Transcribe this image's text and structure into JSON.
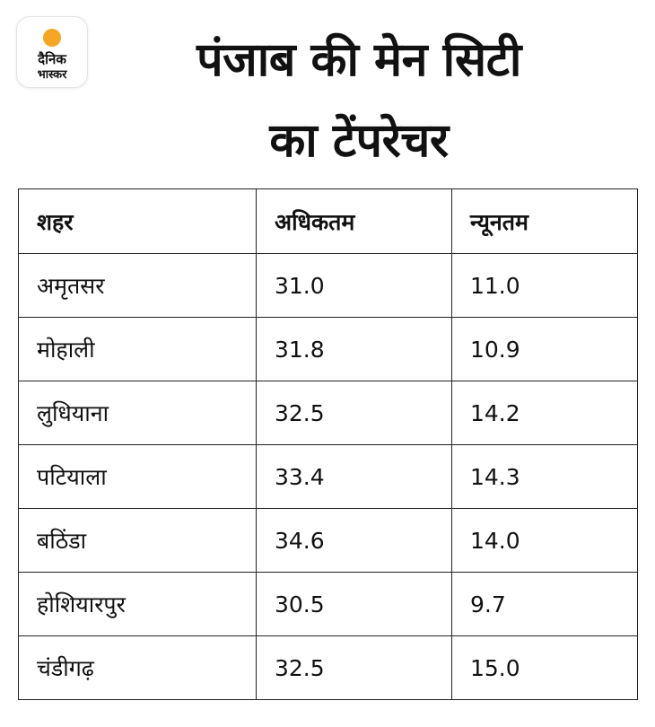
{
  "logo": {
    "line1": "दैनिक",
    "line2": "भास्कर",
    "accent_color": "#F5A623"
  },
  "title": {
    "line1": "पंजाब की मेन सिटी",
    "line2": "का टेंपरेचर"
  },
  "table": {
    "headers": [
      "शहर",
      "अधिकतम",
      "न्यूनतम"
    ],
    "rows": [
      [
        "अमृतसर",
        "31.0",
        "11.0"
      ],
      [
        "मोहाली",
        "31.8",
        "10.9"
      ],
      [
        "लुधियाना",
        "32.5",
        "14.2"
      ],
      [
        "पटियाला",
        "33.4",
        "14.3"
      ],
      [
        "बठिंडा",
        "34.6",
        "14.0"
      ],
      [
        "होशियारपुर",
        "30.5",
        "9.7"
      ],
      [
        "चंडीगढ़",
        "32.5",
        "15.0"
      ]
    ]
  }
}
